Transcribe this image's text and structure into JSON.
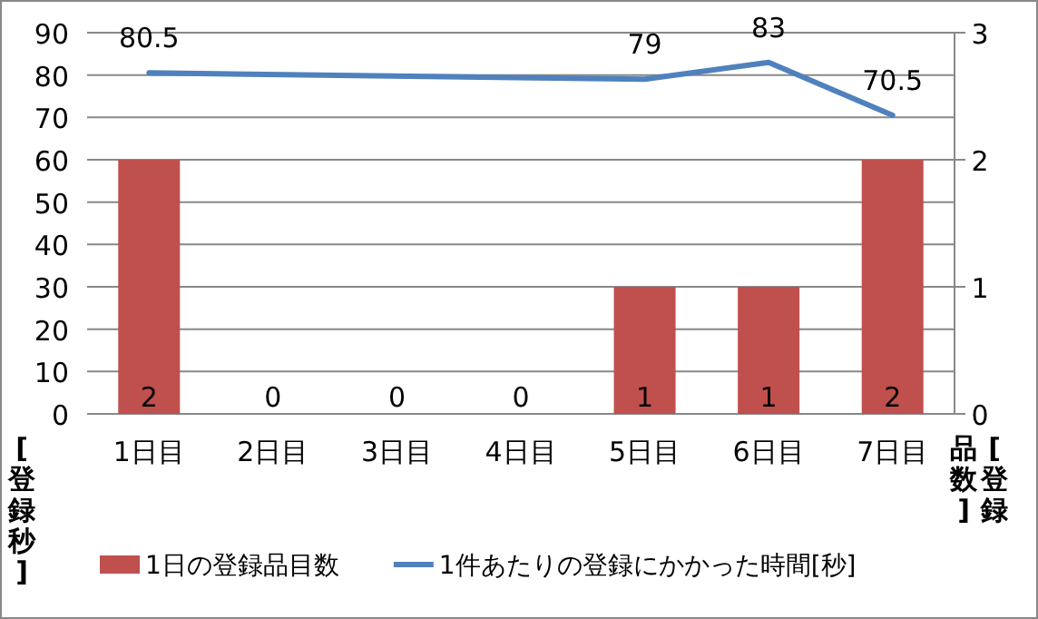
{
  "chart_data": {
    "type": "bar",
    "categories": [
      "1日目",
      "2日目",
      "3日目",
      "4日目",
      "5日目",
      "6日目",
      "7日目"
    ],
    "ylim": [
      0,
      90
    ],
    "yticks": [
      0,
      10,
      20,
      30,
      40,
      50,
      60,
      70,
      80,
      90
    ],
    "y2lim": [
      0,
      3
    ],
    "y2ticks": [
      0,
      1,
      2,
      3
    ],
    "ylabel": "[登録秒]",
    "y2label": "[登録品数]",
    "grid": "y",
    "legend": "bottom",
    "data_labels": true,
    "series": [
      {
        "name": "1日の登録品目数",
        "axis": "y2",
        "color": "#c0504d",
        "values": [
          2,
          0,
          0,
          0,
          1,
          1,
          2
        ]
      },
      {
        "name": "1件あたりの登録にかかった時間[秒]",
        "type": "line",
        "axis": "y",
        "color": "#4f81bd",
        "values": [
          80.5,
          null,
          null,
          null,
          79,
          83,
          70.5
        ]
      }
    ]
  }
}
